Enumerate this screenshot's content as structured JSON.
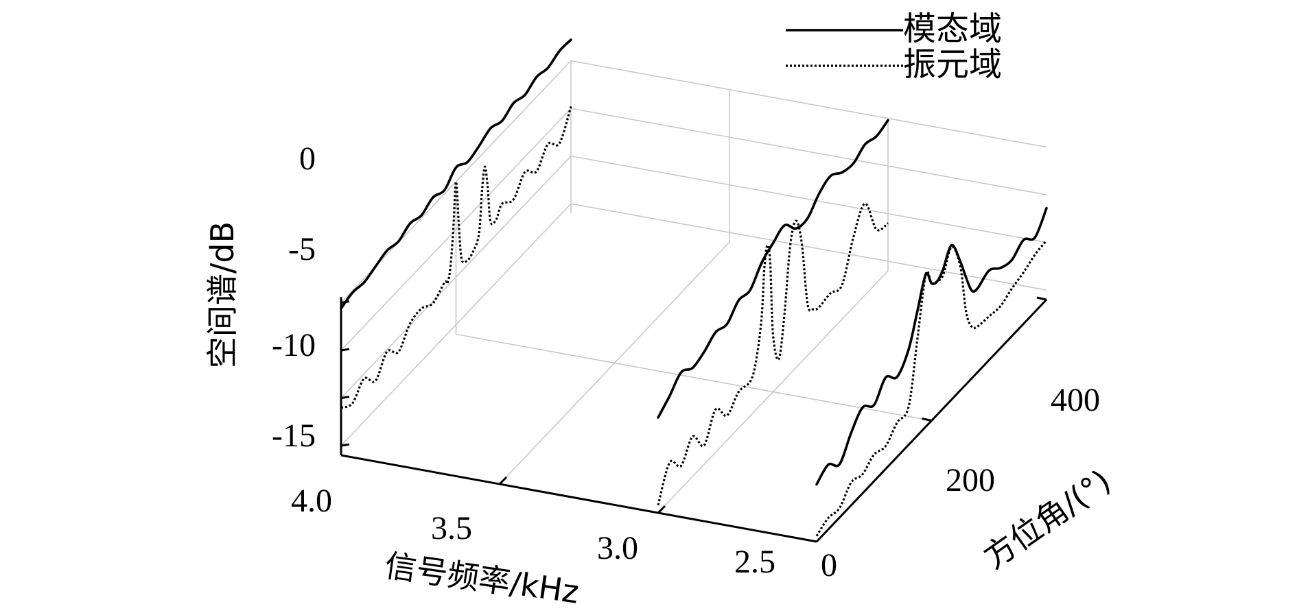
{
  "chart_data": {
    "type": "line",
    "subtype": "3d-waterfall",
    "title": "",
    "ylabel": "空间谱/dB",
    "xlabel": "信号频率/kHz",
    "zlabel": "方位角/(°)",
    "z_ticks": [
      "0",
      "-5",
      "-10",
      "-15"
    ],
    "x_ticks": [
      "4.0",
      "3.5",
      "3.0",
      "2.5"
    ],
    "y_ticks": [
      "0",
      "200",
      "400"
    ],
    "zlim": [
      -16,
      0
    ],
    "xlim": [
      2.5,
      4.0
    ],
    "ylim": [
      0,
      400
    ],
    "grid": true,
    "legend_position": "top-right",
    "legend": [
      {
        "name": "模态域",
        "style": "solid"
      },
      {
        "name": "振元域",
        "style": "dotted"
      }
    ],
    "slices": [
      {
        "frequency_khz": 4.0,
        "series": [
          {
            "name": "模态域",
            "x": [
              0,
              20,
              40,
              60,
              80,
              100,
              120,
              140,
              160,
              180,
              200,
              220,
              240,
              260,
              280,
              300,
              320,
              340,
              360,
              380,
              400
            ],
            "values": [
              -0.6,
              -0.2,
              -0.4,
              0.0,
              0.4,
              0.1,
              0.7,
              0.3,
              0.9,
              0.4,
              1.5,
              0.8,
              1.2,
              1.8,
              1.3,
              1.9,
              1.5,
              2.1,
              1.8,
              2.3,
              2.2
            ]
          },
          {
            "name": "振元域",
            "x": [
              0,
              20,
              40,
              60,
              80,
              100,
              120,
              140,
              160,
              180,
              185,
              190,
              195,
              200,
              205,
              210,
              220,
              230,
              240,
              245,
              250,
              255,
              260,
              270,
              280,
              300,
              320,
              340,
              360,
              380,
              400
            ],
            "values": [
              -11.0,
              -11.8,
              -10.5,
              -12.0,
              -10.2,
              -11.5,
              -9.8,
              -9.5,
              -10.2,
              -9.3,
              -9.7,
              -8.5,
              -5.0,
              0.0,
              -5.0,
              -8.8,
              -9.5,
              -9.2,
              -8.0,
              -4.0,
              -1.6,
              -4.0,
              -8.0,
              -8.4,
              -7.4,
              -8.2,
              -6.6,
              -7.8,
              -6.2,
              -7.4,
              -4.8
            ]
          }
        ]
      },
      {
        "frequency_khz": 3.0,
        "series": [
          {
            "name": "模态域",
            "x": [
              0,
              20,
              40,
              60,
              80,
              100,
              120,
              140,
              160,
              180,
              200,
              220,
              240,
              260,
              280,
              300,
              320,
              340,
              360,
              380,
              400
            ],
            "values": [
              -6.0,
              -5.0,
              -3.8,
              -4.6,
              -4.2,
              -3.4,
              -3.8,
              -2.6,
              -2.8,
              -1.2,
              -0.4,
              0.2,
              -1.4,
              -1.6,
              -0.3,
              0.3,
              -0.6,
              -0.9,
              -0.2,
              -0.6,
              -0.2
            ]
          },
          {
            "name": "振元域",
            "x": [
              0,
              20,
              40,
              60,
              80,
              100,
              120,
              140,
              160,
              170,
              180,
              185,
              190,
              195,
              200,
              210,
              220,
              230,
              240,
              250,
              260,
              270,
              280,
              300,
              320,
              340,
              360,
              380,
              400
            ],
            "values": [
              -15.2,
              -12.0,
              -13.6,
              -11.8,
              -14.0,
              -11.5,
              -13.4,
              -12.2,
              -12.4,
              -11.0,
              -7.0,
              -2.0,
              0.0,
              -2.0,
              -10.0,
              -13.2,
              -9.0,
              -2.5,
              -0.6,
              -3.6,
              -10.6,
              -11.8,
              -12.2,
              -12.0,
              -12.4,
              -8.6,
              -6.4,
              -10.4,
              -11.0
            ]
          }
        ]
      },
      {
        "frequency_khz": 2.5,
        "series": [
          {
            "name": "模态域",
            "x": [
              0,
              20,
              40,
              60,
              80,
              100,
              120,
              140,
              160,
              175,
              190,
              200,
              210,
              220,
              235,
              250,
              260,
              270,
              280,
              300,
              320,
              340,
              360,
              380,
              400
            ],
            "values": [
              -10.0,
              -9.2,
              -10.4,
              -8.4,
              -7.0,
              -8.0,
              -6.4,
              -7.6,
              -6.0,
              -3.0,
              0.0,
              -1.6,
              -2.0,
              -1.4,
              0.2,
              -2.5,
              -4.8,
              -6.8,
              -7.2,
              -6.6,
              -7.6,
              -8.0,
              -7.2,
              -8.2,
              -6.4
            ]
          },
          {
            "name": "振元域",
            "x": [
              0,
              20,
              40,
              60,
              80,
              100,
              120,
              140,
              160,
              175,
              190,
              200,
              210,
              220,
              235,
              250,
              260,
              270,
              280,
              300,
              320,
              340,
              360,
              380,
              400
            ],
            "values": [
              -15.4,
              -14.8,
              -15.0,
              -13.6,
              -14.0,
              -13.2,
              -13.6,
              -12.4,
              -12.0,
              -6.0,
              0.0,
              -1.6,
              -2.0,
              -2.0,
              0.0,
              -3.0,
              -8.4,
              -10.6,
              -11.2,
              -11.4,
              -11.6,
              -11.0,
              -10.6,
              -10.0,
              -9.8
            ]
          }
        ]
      }
    ]
  }
}
